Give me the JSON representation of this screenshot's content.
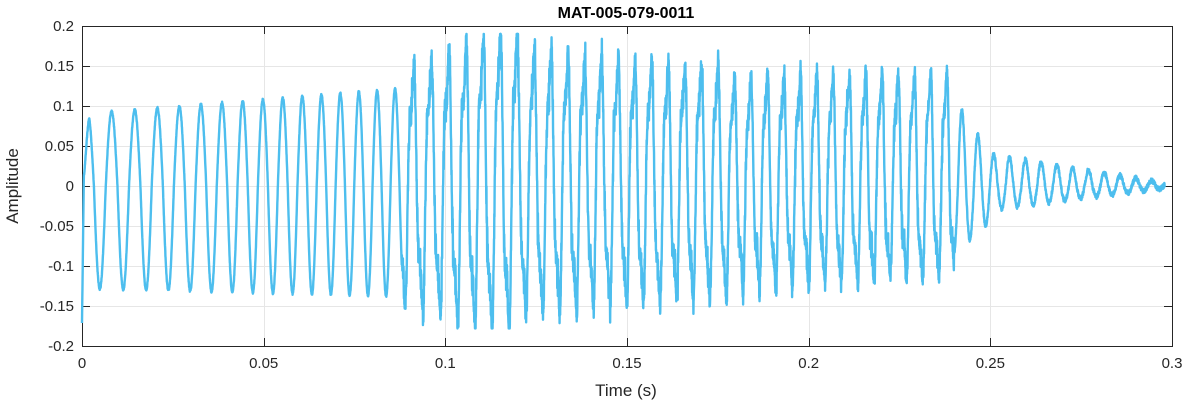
{
  "chart_data": {
    "type": "line",
    "title": "MAT-005-079-0011",
    "xlabel": "Time (s)",
    "ylabel": "Amplitude",
    "xlim": [
      0,
      0.3
    ],
    "ylim": [
      -0.2,
      0.2
    ],
    "x_ticks": [
      0,
      0.05,
      0.1,
      0.15,
      0.2,
      0.25,
      0.3
    ],
    "x_tick_labels": [
      "0",
      "0.05",
      "0.1",
      "0.15",
      "0.2",
      "0.25",
      "0.3"
    ],
    "y_ticks": [
      -0.2,
      -0.15,
      -0.1,
      -0.05,
      0,
      0.05,
      0.1,
      0.15,
      0.2
    ],
    "y_tick_labels": [
      "-0.2",
      "-0.15",
      "-0.1",
      "-0.05",
      "0",
      "0.05",
      "0.1",
      "0.15",
      "0.2"
    ],
    "grid": true,
    "legend": "none",
    "series_color": "#4DBEEE",
    "series": [
      {
        "segments": [
          {
            "t_start": 0.0,
            "t_end": 0.088,
            "f0": 150,
            "f1": 205,
            "a_pos": [
              0.09,
              0.122
            ],
            "a_neg": [
              0.128,
              0.138
            ],
            "type": "clean"
          },
          {
            "t_start": 0.088,
            "t_end": 0.12,
            "f0": 205,
            "f1": 215,
            "a_pos": [
              0.135,
              0.19
            ],
            "a_neg": [
              0.14,
              0.175
            ],
            "type": "noisy"
          },
          {
            "t_start": 0.12,
            "t_end": 0.178,
            "f0": 215,
            "f1": 220,
            "a_pos": [
              0.16,
              0.14
            ],
            "a_neg": [
              0.15,
              0.13
            ],
            "type": "noisy"
          },
          {
            "t_start": 0.178,
            "t_end": 0.24,
            "f0": 220,
            "f1": 225,
            "a_pos": [
              0.13,
              0.135
            ],
            "a_neg": [
              0.12,
              0.105
            ],
            "type": "noisy"
          },
          {
            "t_start": 0.24,
            "t_end": 0.25,
            "f0": 225,
            "f1": 230,
            "a_pos": [
              0.11,
              0.04
            ],
            "a_neg": [
              0.085,
              0.045
            ],
            "type": "decay"
          },
          {
            "t_start": 0.25,
            "t_end": 0.298,
            "f0": 230,
            "f1": 230,
            "a_pos": [
              0.04,
              0.004
            ],
            "a_neg": [
              0.03,
              0.003
            ],
            "type": "decay"
          }
        ],
        "peaks": [
          {
            "x": 0.0995,
            "y": 0.19
          },
          {
            "x": 0.1098,
            "y": 0.188
          },
          {
            "x": 0.099,
            "y": -0.18
          },
          {
            "x": 0.1085,
            "y": -0.17
          }
        ]
      }
    ]
  }
}
